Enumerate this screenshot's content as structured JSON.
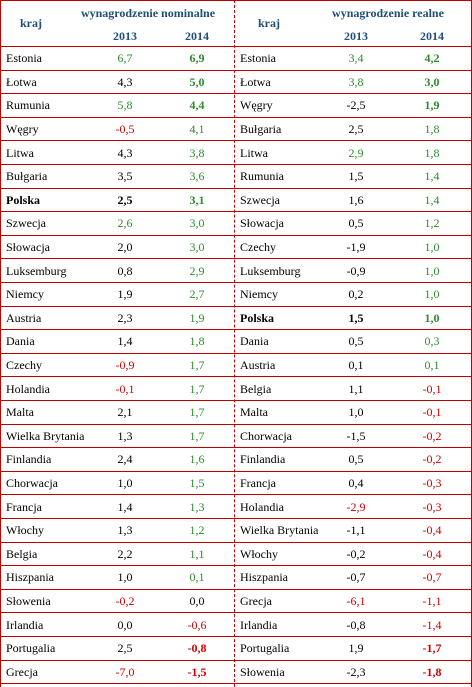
{
  "colors": {
    "positive": "#2e8b2e",
    "negative": "#d00000",
    "neutral": "#000000",
    "header": "#1f4e79",
    "grid": "#c00000"
  },
  "left": {
    "country_header": "kraj",
    "group_header": "wynagrodzenie nominalne",
    "year1": "2013",
    "year2": "2014",
    "rows": [
      {
        "country": "Estonia",
        "v2013": "6,7",
        "c2013": "positive",
        "v2014": "6,9",
        "c2014": "positive",
        "b2014": true
      },
      {
        "country": "Łotwa",
        "v2013": "4,3",
        "c2013": "neutral",
        "v2014": "5,0",
        "c2014": "positive",
        "b2014": true
      },
      {
        "country": "Rumunia",
        "v2013": "5,8",
        "c2013": "positive",
        "v2014": "4,4",
        "c2014": "positive",
        "b2014": true
      },
      {
        "country": "Węgry",
        "v2013": "-0,5",
        "c2013": "negative",
        "v2014": "4,1",
        "c2014": "positive"
      },
      {
        "country": "Litwa",
        "v2013": "4,3",
        "c2013": "neutral",
        "v2014": "3,8",
        "c2014": "positive"
      },
      {
        "country": "Bułgaria",
        "v2013": "3,5",
        "c2013": "neutral",
        "v2014": "3,6",
        "c2014": "positive"
      },
      {
        "country": "Polska",
        "v2013": "2,5",
        "c2013": "neutral",
        "v2014": "3,1",
        "c2014": "positive",
        "bold": true
      },
      {
        "country": "Szwecja",
        "v2013": "2,6",
        "c2013": "positive",
        "v2014": "3,0",
        "c2014": "positive"
      },
      {
        "country": "Słowacja",
        "v2013": "2,0",
        "c2013": "neutral",
        "v2014": "3,0",
        "c2014": "positive"
      },
      {
        "country": "Luksemburg",
        "v2013": "0,8",
        "c2013": "neutral",
        "v2014": "2,9",
        "c2014": "positive"
      },
      {
        "country": "Niemcy",
        "v2013": "1,9",
        "c2013": "neutral",
        "v2014": "2,7",
        "c2014": "positive"
      },
      {
        "country": "Austria",
        "v2013": "2,3",
        "c2013": "neutral",
        "v2014": "1,9",
        "c2014": "positive"
      },
      {
        "country": "Dania",
        "v2013": "1,4",
        "c2013": "neutral",
        "v2014": "1,8",
        "c2014": "positive"
      },
      {
        "country": "Czechy",
        "v2013": "-0,9",
        "c2013": "negative",
        "v2014": "1,7",
        "c2014": "positive"
      },
      {
        "country": "Holandia",
        "v2013": "-0,1",
        "c2013": "negative",
        "v2014": "1,7",
        "c2014": "positive"
      },
      {
        "country": "Malta",
        "v2013": "2,1",
        "c2013": "neutral",
        "v2014": "1,7",
        "c2014": "positive"
      },
      {
        "country": "Wielka Brytania",
        "v2013": "1,3",
        "c2013": "neutral",
        "v2014": "1,7",
        "c2014": "positive"
      },
      {
        "country": "Finlandia",
        "v2013": "2,4",
        "c2013": "neutral",
        "v2014": "1,6",
        "c2014": "positive"
      },
      {
        "country": "Chorwacja",
        "v2013": "1,0",
        "c2013": "neutral",
        "v2014": "1,5",
        "c2014": "positive"
      },
      {
        "country": "Francja",
        "v2013": "1,4",
        "c2013": "neutral",
        "v2014": "1,3",
        "c2014": "positive"
      },
      {
        "country": "Włochy",
        "v2013": "1,3",
        "c2013": "neutral",
        "v2014": "1,2",
        "c2014": "positive"
      },
      {
        "country": "Belgia",
        "v2013": "2,2",
        "c2013": "neutral",
        "v2014": "1,1",
        "c2014": "positive"
      },
      {
        "country": "Hiszpania",
        "v2013": "1,0",
        "c2013": "neutral",
        "v2014": "0,1",
        "c2014": "positive"
      },
      {
        "country": "Słowenia",
        "v2013": "-0,2",
        "c2013": "negative",
        "v2014": "0,0",
        "c2014": "neutral"
      },
      {
        "country": "Irlandia",
        "v2013": "0,0",
        "c2013": "neutral",
        "v2014": "-0,6",
        "c2014": "negative"
      },
      {
        "country": "Portugalia",
        "v2013": "2,5",
        "c2013": "neutral",
        "v2014": "-0,8",
        "c2014": "negative",
        "b2014": true
      },
      {
        "country": "Grecja",
        "v2013": "-7,0",
        "c2013": "negative",
        "v2014": "-1,5",
        "c2014": "negative",
        "b2014": true
      }
    ]
  },
  "right": {
    "country_header": "kraj",
    "group_header": "wynagrodzenie realne",
    "year1": "2013",
    "year2": "2014",
    "rows": [
      {
        "country": "Estonia",
        "v2013": "3,4",
        "c2013": "positive",
        "v2014": "4,2",
        "c2014": "positive",
        "b2014": true
      },
      {
        "country": "Łotwa",
        "v2013": "3,8",
        "c2013": "positive",
        "v2014": "3,0",
        "c2014": "positive",
        "b2014": true
      },
      {
        "country": "Węgry",
        "v2013": "-2,5",
        "c2013": "neutral",
        "v2014": "1,9",
        "c2014": "positive",
        "b2014": true
      },
      {
        "country": "Bułgaria",
        "v2013": "2,5",
        "c2013": "neutral",
        "v2014": "1,8",
        "c2014": "positive"
      },
      {
        "country": "Litwa",
        "v2013": "2,9",
        "c2013": "positive",
        "v2014": "1,8",
        "c2014": "positive"
      },
      {
        "country": "Rumunia",
        "v2013": "1,5",
        "c2013": "neutral",
        "v2014": "1,4",
        "c2014": "positive"
      },
      {
        "country": "Szwecja",
        "v2013": "1,6",
        "c2013": "neutral",
        "v2014": "1,4",
        "c2014": "positive"
      },
      {
        "country": "Słowacja",
        "v2013": "0,5",
        "c2013": "neutral",
        "v2014": "1,2",
        "c2014": "positive"
      },
      {
        "country": "Czechy",
        "v2013": "-1,9",
        "c2013": "neutral",
        "v2014": "1,0",
        "c2014": "positive"
      },
      {
        "country": "Luksemburg",
        "v2013": "-0,9",
        "c2013": "neutral",
        "v2014": "1,0",
        "c2014": "positive"
      },
      {
        "country": "Niemcy",
        "v2013": "0,2",
        "c2013": "neutral",
        "v2014": "1,0",
        "c2014": "positive"
      },
      {
        "country": "Polska",
        "v2013": "1,5",
        "c2013": "neutral",
        "v2014": "1,0",
        "c2014": "positive",
        "bold": true
      },
      {
        "country": "Dania",
        "v2013": "0,5",
        "c2013": "neutral",
        "v2014": "0,3",
        "c2014": "positive"
      },
      {
        "country": "Austria",
        "v2013": "0,1",
        "c2013": "neutral",
        "v2014": "0,1",
        "c2014": "positive"
      },
      {
        "country": "Belgia",
        "v2013": "1,1",
        "c2013": "neutral",
        "v2014": "-0,1",
        "c2014": "negative"
      },
      {
        "country": "Malta",
        "v2013": "1,0",
        "c2013": "neutral",
        "v2014": "-0,1",
        "c2014": "negative"
      },
      {
        "country": "Chorwacja",
        "v2013": "-1,5",
        "c2013": "neutral",
        "v2014": "-0,2",
        "c2014": "negative"
      },
      {
        "country": "Finlandia",
        "v2013": "0,5",
        "c2013": "neutral",
        "v2014": "-0,2",
        "c2014": "negative"
      },
      {
        "country": "Francja",
        "v2013": "0,4",
        "c2013": "neutral",
        "v2014": "-0,3",
        "c2014": "negative"
      },
      {
        "country": "Holandia",
        "v2013": "-2,9",
        "c2013": "negative",
        "v2014": "-0,3",
        "c2014": "negative"
      },
      {
        "country": "Wielka Brytania",
        "v2013": "-1,1",
        "c2013": "neutral",
        "v2014": "-0,4",
        "c2014": "negative"
      },
      {
        "country": "Włochy",
        "v2013": "-0,2",
        "c2013": "neutral",
        "v2014": "-0,4",
        "c2014": "negative"
      },
      {
        "country": "Hiszpania",
        "v2013": "-0,7",
        "c2013": "neutral",
        "v2014": "-0,7",
        "c2014": "negative"
      },
      {
        "country": "Grecja",
        "v2013": "-6,1",
        "c2013": "negative",
        "v2014": "-1,1",
        "c2014": "negative"
      },
      {
        "country": "Irlandia",
        "v2013": "-0,8",
        "c2013": "neutral",
        "v2014": "-1,4",
        "c2014": "negative"
      },
      {
        "country": "Portugalia",
        "v2013": "1,9",
        "c2013": "neutral",
        "v2014": "-1,7",
        "c2014": "negative",
        "b2014": true
      },
      {
        "country": "Słowenia",
        "v2013": "-2,3",
        "c2013": "neutral",
        "v2014": "-1,8",
        "c2014": "negative",
        "b2014": true
      }
    ]
  }
}
